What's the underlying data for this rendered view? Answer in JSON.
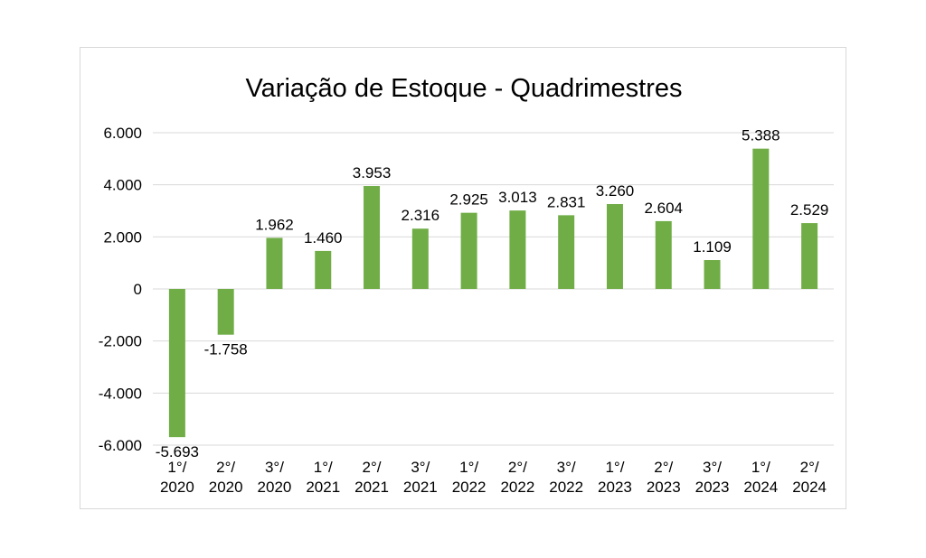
{
  "chart_data": {
    "type": "bar",
    "title": "Variação de Estoque - Quadrimestres",
    "xlabel": "",
    "ylabel": "",
    "ylim": [
      -6000,
      6000
    ],
    "yticks": [
      6000,
      4000,
      2000,
      0,
      -2000,
      -4000,
      -6000
    ],
    "ytick_labels": [
      "6.000",
      "4.000",
      "2.000",
      "0",
      "-2.000",
      "-4.000",
      "-6.000"
    ],
    "grid": true,
    "legend": "none",
    "bar_color": "#70ad47",
    "categories": [
      [
        "1°/",
        "2020"
      ],
      [
        "2°/",
        "2020"
      ],
      [
        "3°/",
        "2020"
      ],
      [
        "1°/",
        "2021"
      ],
      [
        "2°/",
        "2021"
      ],
      [
        "3°/",
        "2021"
      ],
      [
        "1°/",
        "2022"
      ],
      [
        "2°/",
        "2022"
      ],
      [
        "3°/",
        "2022"
      ],
      [
        "1°/",
        "2023"
      ],
      [
        "2°/",
        "2023"
      ],
      [
        "3°/",
        "2023"
      ],
      [
        "1°/",
        "2024"
      ],
      [
        "2°/",
        "2024"
      ]
    ],
    "values": [
      -5693,
      -1758,
      1962,
      1460,
      3953,
      2316,
      2925,
      3013,
      2831,
      3260,
      2604,
      1109,
      5388,
      2529
    ],
    "data_labels": [
      "-5.693",
      "-1.758",
      "1.962",
      "1.460",
      "3.953",
      "2.316",
      "2.925",
      "3.013",
      "2.831",
      "3.260",
      "2.604",
      "1.109",
      "5.388",
      "2.529"
    ]
  }
}
